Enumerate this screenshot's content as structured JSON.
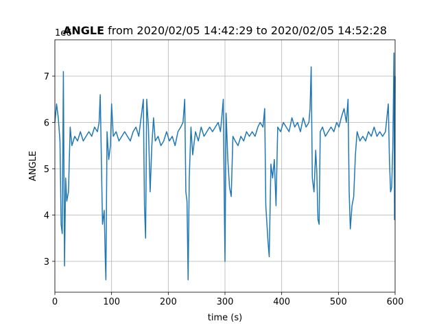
{
  "chart_data": {
    "type": "line",
    "title": {
      "bold": "ANGLE",
      "rest": "from 2020/02/05 14:42:29 to 2020/02/05 14:52:28"
    },
    "x_label": "time (s)",
    "y_label": "ANGLE",
    "y_offset_label": "1e6",
    "xlim": [
      0,
      600
    ],
    "xticks": [
      0,
      100,
      200,
      300,
      400,
      500,
      600
    ],
    "ylim": [
      2.333,
      7.785
    ],
    "yticks": [
      3,
      4,
      5,
      6,
      7
    ],
    "grid": true,
    "x": [
      0,
      3,
      6,
      9,
      11,
      13,
      15,
      17,
      19,
      21,
      24,
      27,
      30,
      35,
      40,
      45,
      50,
      55,
      60,
      65,
      70,
      75,
      78,
      80,
      82,
      84,
      87,
      89,
      90,
      92,
      95,
      98,
      100,
      103,
      108,
      113,
      118,
      123,
      128,
      133,
      138,
      143,
      148,
      153,
      156,
      158,
      160,
      162,
      165,
      168,
      171,
      174,
      177,
      182,
      187,
      192,
      197,
      202,
      207,
      212,
      217,
      222,
      226,
      229,
      231,
      233,
      235,
      237,
      240,
      243,
      248,
      253,
      258,
      263,
      268,
      273,
      278,
      283,
      288,
      292,
      295,
      297,
      299,
      300,
      302,
      305,
      308,
      311,
      314,
      318,
      323,
      328,
      333,
      338,
      343,
      348,
      353,
      358,
      362,
      367,
      370,
      372,
      374,
      376,
      378,
      381,
      384,
      387,
      390,
      393,
      398,
      403,
      408,
      413,
      418,
      423,
      428,
      433,
      438,
      443,
      448,
      450,
      452,
      454,
      457,
      460,
      462,
      464,
      466,
      468,
      472,
      477,
      482,
      487,
      492,
      497,
      501,
      505,
      510,
      514,
      517,
      519,
      521,
      524,
      527,
      530,
      533,
      538,
      543,
      548,
      553,
      558,
      563,
      568,
      573,
      578,
      583,
      588,
      590,
      592,
      594,
      596,
      598,
      599,
      600
    ],
    "series": [
      {
        "name": "ANGLE",
        "color": "#1f77b4",
        "values": [
          6.0,
          6.4,
          6.1,
          5.6,
          3.8,
          3.6,
          7.1,
          2.9,
          4.8,
          4.3,
          4.5,
          5.9,
          5.5,
          5.7,
          5.6,
          5.8,
          5.6,
          5.7,
          5.8,
          5.7,
          5.9,
          5.8,
          6.0,
          6.6,
          5.2,
          3.8,
          4.1,
          3.0,
          2.6,
          5.8,
          5.2,
          5.5,
          6.4,
          5.7,
          5.8,
          5.6,
          5.7,
          5.8,
          5.7,
          5.6,
          5.8,
          5.9,
          5.7,
          6.2,
          6.5,
          4.2,
          3.5,
          6.5,
          5.9,
          4.5,
          5.5,
          6.1,
          5.6,
          5.7,
          5.5,
          5.6,
          5.8,
          5.6,
          5.7,
          5.5,
          5.8,
          5.9,
          6.0,
          6.5,
          4.5,
          4.3,
          2.6,
          4.8,
          5.9,
          5.3,
          5.8,
          5.6,
          5.9,
          5.7,
          5.8,
          5.9,
          5.8,
          5.9,
          6.0,
          5.8,
          6.2,
          6.5,
          4.0,
          3.0,
          6.2,
          5.2,
          4.6,
          4.4,
          5.7,
          5.6,
          5.5,
          5.7,
          5.6,
          5.8,
          5.7,
          5.8,
          5.7,
          5.9,
          6.0,
          5.9,
          6.3,
          4.2,
          3.8,
          3.4,
          3.1,
          5.1,
          4.8,
          5.2,
          4.2,
          5.9,
          5.8,
          6.0,
          5.9,
          5.8,
          6.1,
          5.9,
          6.0,
          5.8,
          6.1,
          5.9,
          6.0,
          6.3,
          7.2,
          4.8,
          4.5,
          5.4,
          4.9,
          3.9,
          3.8,
          5.8,
          5.9,
          5.7,
          5.8,
          5.9,
          5.8,
          6.0,
          5.9,
          6.1,
          6.3,
          6.0,
          6.5,
          4.5,
          3.7,
          4.2,
          4.4,
          5.3,
          5.8,
          5.6,
          5.7,
          5.6,
          5.8,
          5.7,
          5.9,
          5.7,
          5.8,
          5.7,
          5.8,
          6.4,
          5.2,
          4.5,
          4.6,
          5.5,
          7.5,
          3.9,
          7.0
        ]
      }
    ]
  }
}
